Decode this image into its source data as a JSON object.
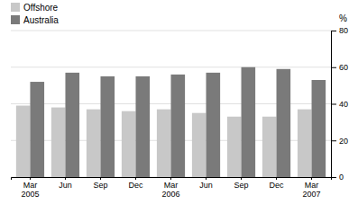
{
  "chart_data": {
    "type": "bar",
    "categories": [
      "Mar\n2005",
      "Jun",
      "Sep",
      "Dec",
      "Mar\n2006",
      "Jun",
      "Sep",
      "Dec",
      "Mar\n2007"
    ],
    "series": [
      {
        "name": "Offshore",
        "color": "#c8c8c8",
        "values": [
          39,
          38,
          37,
          36,
          37,
          35,
          33,
          33,
          37
        ]
      },
      {
        "name": "Australia",
        "color": "#7a7a7a",
        "values": [
          52,
          57,
          55,
          55,
          56,
          57,
          60,
          59,
          53
        ]
      }
    ],
    "ylabel": "%",
    "ylim": [
      0,
      80
    ],
    "yticks": [
      0,
      20,
      40,
      60,
      80
    ],
    "grid": true,
    "legend": "upper left"
  }
}
